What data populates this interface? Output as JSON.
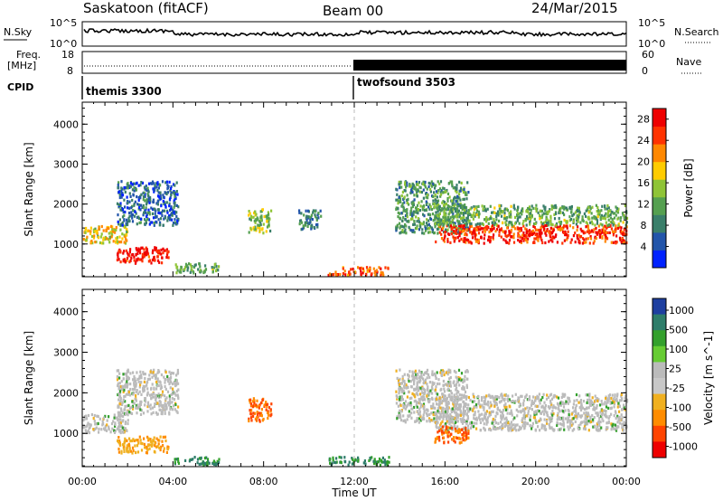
{
  "header": {
    "station": "Saskatoon (fitACF)",
    "beam": "Beam 00",
    "date": "24/Mar/2015"
  },
  "top_panels": {
    "nsky_label": "N.Sky",
    "nsky_ticks": [
      "10^5",
      "10^0"
    ],
    "nsearch_label": "N.Search",
    "nsearch_ticks": [
      "10^5",
      "10^0"
    ],
    "freq_label_1": "Freq.",
    "freq_label_2": "[MHz]",
    "freq_ticks": [
      "18",
      "8"
    ],
    "nave_label": "Nave",
    "nave_ticks": [
      "60",
      "0"
    ],
    "cpid_label": "CPID",
    "cpid_modes": [
      {
        "name": "themis 3300",
        "start": "00:00"
      },
      {
        "name": "twofsound 3503",
        "start": "12:00"
      }
    ]
  },
  "chart_data": [
    {
      "type": "heatmap",
      "title": "",
      "xlabel": "Time UT",
      "ylabel": "Slant Range [km]",
      "x_ticks": [
        "00:00",
        "04:00",
        "08:00",
        "12:00",
        "16:00",
        "20:00",
        "00:00"
      ],
      "x_hours": [
        0,
        4,
        8,
        12,
        16,
        20,
        24
      ],
      "y_ticks": [
        "1000",
        "2000",
        "3000",
        "4000"
      ],
      "y_values": [
        1000,
        2000,
        3000,
        4000
      ],
      "ylim": [
        180,
        4550
      ],
      "xlim": [
        0,
        24
      ],
      "colorbar": {
        "label": "Power [dB]",
        "ticks": [
          "4",
          "8",
          "12",
          "16",
          "20",
          "24",
          "28"
        ],
        "range": [
          0,
          30
        ]
      },
      "features": [
        {
          "t0": 0.0,
          "t1": 2.0,
          "r0": 1050,
          "r1": 1500,
          "value": 18
        },
        {
          "t0": 1.5,
          "t1": 3.8,
          "r0": 550,
          "r1": 950,
          "value": 28
        },
        {
          "t0": 1.5,
          "t1": 4.2,
          "r0": 1500,
          "r1": 2600,
          "value": 6
        },
        {
          "t0": 4.0,
          "t1": 6.0,
          "r0": 300,
          "r1": 550,
          "value": 12
        },
        {
          "t0": 7.3,
          "t1": 8.3,
          "r0": 1300,
          "r1": 1900,
          "value": 14
        },
        {
          "t0": 9.5,
          "t1": 10.5,
          "r0": 1400,
          "r1": 1900,
          "value": 8
        },
        {
          "t0": 10.8,
          "t1": 13.5,
          "r0": 250,
          "r1": 450,
          "value": 24
        },
        {
          "t0": 13.8,
          "t1": 17.0,
          "r0": 1300,
          "r1": 2600,
          "value": 10
        },
        {
          "t0": 15.5,
          "t1": 24.0,
          "r0": 1050,
          "r1": 1500,
          "value": 26
        },
        {
          "t0": 15.5,
          "t1": 24.0,
          "r0": 1500,
          "r1": 2000,
          "value": 12
        }
      ]
    },
    {
      "type": "heatmap",
      "title": "",
      "xlabel": "Time UT",
      "ylabel": "Slant Range [km]",
      "x_ticks": [
        "00:00",
        "04:00",
        "08:00",
        "12:00",
        "16:00",
        "20:00",
        "00:00"
      ],
      "x_hours": [
        0,
        4,
        8,
        12,
        16,
        20,
        24
      ],
      "y_ticks": [
        "1000",
        "2000",
        "3000",
        "4000"
      ],
      "y_values": [
        1000,
        2000,
        3000,
        4000
      ],
      "ylim": [
        180,
        4550
      ],
      "xlim": [
        0,
        24
      ],
      "colorbar": {
        "label": "Velocity [m s^-1]",
        "ticks": [
          "1000",
          "500",
          "100",
          "25",
          "-25",
          "-100",
          "-500",
          "-1000"
        ]
      },
      "features": [
        {
          "t0": 0.0,
          "t1": 2.0,
          "r0": 1050,
          "r1": 1500,
          "value": 0
        },
        {
          "t0": 1.5,
          "t1": 3.8,
          "r0": 550,
          "r1": 950,
          "value": -100
        },
        {
          "t0": 1.5,
          "t1": 4.2,
          "r0": 1500,
          "r1": 2600,
          "value": 0
        },
        {
          "t0": 4.0,
          "t1": 6.0,
          "r0": 250,
          "r1": 450,
          "value": 100
        },
        {
          "t0": 7.3,
          "t1": 8.3,
          "r0": 1300,
          "r1": 1900,
          "value": -500
        },
        {
          "t0": 10.8,
          "t1": 13.5,
          "r0": 250,
          "r1": 450,
          "value": 100
        },
        {
          "t0": 13.8,
          "t1": 17.0,
          "r0": 1300,
          "r1": 2600,
          "value": 0
        },
        {
          "t0": 15.5,
          "t1": 24.0,
          "r0": 1100,
          "r1": 2000,
          "value": 0
        },
        {
          "t0": 15.5,
          "t1": 17.0,
          "r0": 800,
          "r1": 1200,
          "value": -500
        }
      ]
    }
  ],
  "colors": {
    "power_scale": [
      "#0022ff",
      "#2255aa",
      "#3a7f6a",
      "#55a050",
      "#8fc437",
      "#ffcc00",
      "#ff8800",
      "#ff3300",
      "#ee0000"
    ],
    "velocity_scale": [
      "#1e3fa0",
      "#2e7d6a",
      "#33a02c",
      "#66cc33",
      "#bbbbbb",
      "#c8c8c8",
      "#f0b020",
      "#ff8c00",
      "#ff4400",
      "#ee0000"
    ]
  }
}
